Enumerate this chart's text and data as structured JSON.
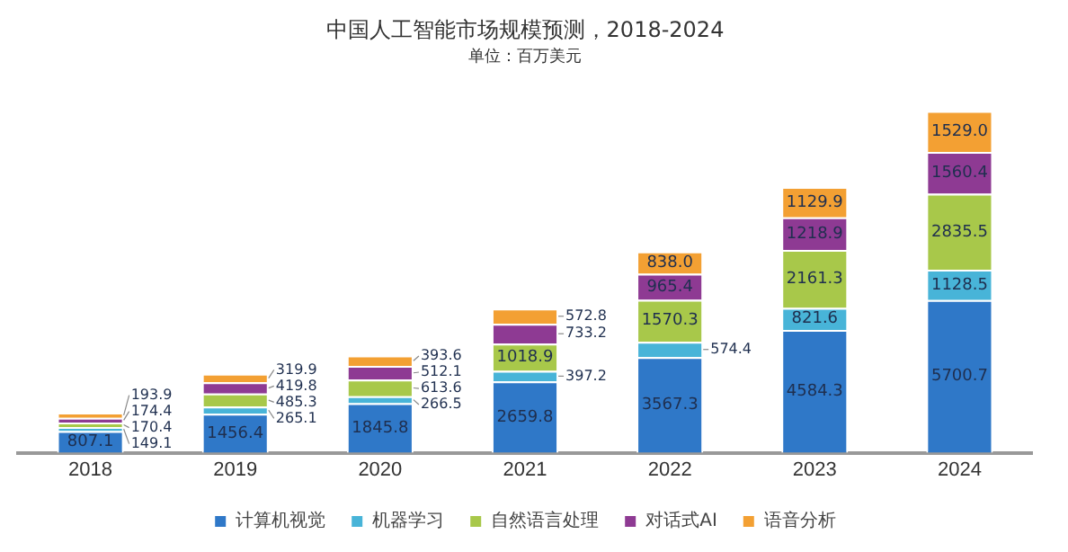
{
  "chart_data": {
    "type": "bar",
    "title": "中国人工智能市场规模预测，2018-2024",
    "subtitle": "单位：百万美元",
    "stacked": true,
    "legend": "bottom",
    "grid": false,
    "categories": [
      "2018",
      "2019",
      "2020",
      "2021",
      "2022",
      "2023",
      "2024"
    ],
    "series": [
      {
        "name": "计算机视觉",
        "color": "#2f78c8",
        "values": [
          807.1,
          1456.4,
          1845.8,
          2659.8,
          3567.3,
          4584.3,
          5700.7
        ],
        "value_labels": [
          "807.1",
          "1456.4",
          "1845.8",
          "2659.8",
          "3567.3",
          "4584.3",
          "5700.7"
        ]
      },
      {
        "name": "机器学习",
        "color": "#48b4d8",
        "values": [
          149.1,
          265.1,
          266.5,
          397.2,
          574.4,
          821.6,
          1128.5
        ],
        "value_labels": [
          "149.1",
          "265.1",
          "266.5",
          "397.2",
          "574.4",
          "821.6",
          "1128.5"
        ]
      },
      {
        "name": "自然语言处理",
        "color": "#a8c84a",
        "values": [
          170.4,
          485.3,
          613.6,
          1018.9,
          1570.3,
          2161.3,
          2835.5
        ],
        "value_labels": [
          "170.4",
          "485.3",
          "613.6",
          "1018.9",
          "1570.3",
          "2161.3",
          "2835.5"
        ]
      },
      {
        "name": "对话式AI",
        "color": "#8e3a93",
        "values": [
          174.4,
          419.8,
          512.1,
          733.2,
          965.4,
          1218.9,
          1560.4
        ],
        "value_labels": [
          "174.4",
          "419.8",
          "512.1",
          "733.2",
          "965.4",
          "1218.9",
          "1560.4"
        ]
      },
      {
        "name": "语音分析",
        "color": "#f3a033",
        "values": [
          193.9,
          319.9,
          393.6,
          572.8,
          838.0,
          1129.9,
          1529.0
        ],
        "value_labels": [
          "193.9",
          "319.9",
          "393.6",
          "572.8",
          "838.0",
          "1129.9",
          "1529.0"
        ]
      }
    ]
  }
}
